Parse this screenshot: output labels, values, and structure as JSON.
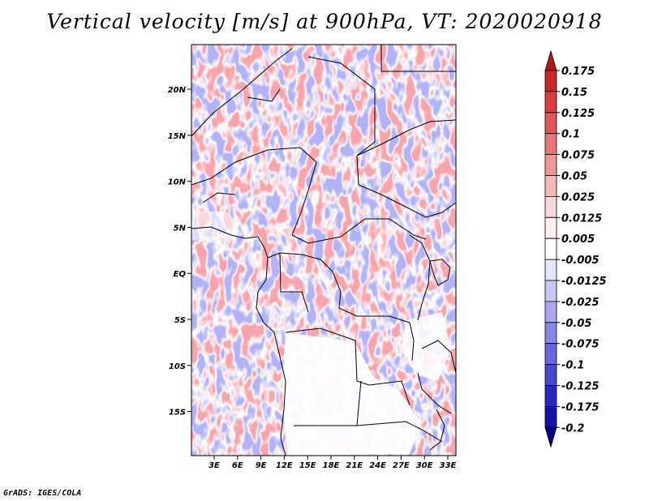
{
  "title": "Vertical velocity [m/s] at 900hPa, VT: 2020020918",
  "credit": "GrADS: IGES/COLA",
  "map": {
    "variable": "Vertical velocity",
    "units": "m/s",
    "level": "900hPa",
    "valid_time": "2020020918",
    "lat_labels": [
      "20N",
      "15N",
      "10N",
      "5N",
      "EQ",
      "5S",
      "10S",
      "15S"
    ],
    "lon_labels": [
      "3E",
      "6E",
      "9E",
      "12E",
      "15E",
      "18E",
      "21E",
      "24E",
      "27E",
      "30E",
      "33E"
    ]
  },
  "colorbar": {
    "labels": [
      "0.175",
      "0.15",
      "0.125",
      "0.1",
      "0.075",
      "0.05",
      "0.025",
      "0.0125",
      "0.005",
      "-0.005",
      "-0.0125",
      "-0.025",
      "-0.05",
      "-0.075",
      "-0.1",
      "-0.125",
      "-0.175",
      "-0.2"
    ],
    "colors": [
      "#b01818",
      "#c92828",
      "#d84040",
      "#e05858",
      "#e87878",
      "#f09898",
      "#f6b8b8",
      "#fbd8d8",
      "#fff0f0",
      "#ffffff",
      "#e4e4fb",
      "#c8c8f5",
      "#a8a8ee",
      "#8888e6",
      "#6868dc",
      "#4848cf",
      "#2828bf",
      "#1414a8",
      "#000080"
    ]
  }
}
